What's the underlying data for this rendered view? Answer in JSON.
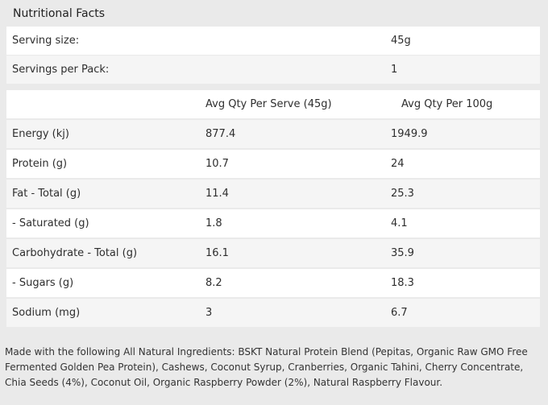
{
  "title": "Nutritional Facts",
  "serving_rows": [
    {
      "label": "Serving size:",
      "value": "45g"
    },
    {
      "label": "Servings per Pack:",
      "value": "1"
    }
  ],
  "table": {
    "col_headers": [
      "Avg Qty Per Serve (45g)",
      "Avg Qty Per 100g"
    ],
    "rows": [
      {
        "label": "Energy (kj)",
        "per_serve": "877.4",
        "per_100g": "1949.9"
      },
      {
        "label": "Protein (g)",
        "per_serve": "10.7",
        "per_100g": "24"
      },
      {
        "label": "Fat - Total (g)",
        "per_serve": "11.4",
        "per_100g": "25.3"
      },
      {
        "label": "- Saturated (g)",
        "per_serve": "1.8",
        "per_100g": "4.1"
      },
      {
        "label": "Carbohydrate - Total (g)",
        "per_serve": "16.1",
        "per_100g": "35.9"
      },
      {
        "label": "- Sugars (g)",
        "per_serve": "8.2",
        "per_100g": "18.3"
      },
      {
        "label": "Sodium (mg)",
        "per_serve": "3",
        "per_100g": "6.7"
      }
    ]
  },
  "ingredients_note": "Made with the following All Natural Ingredients: BSKT Natural Protein Blend (Pepitas, Organic Raw GMO Free Fermented Golden Pea Protein), Cashews, Coconut Syrup, Cranberries, Organic Tahini, Cherry Concentrate, Chia Seeds (4%), Coconut Oil, Organic Raspberry Powder (2%), Natural Raspberry Flavour.",
  "colors": {
    "page_background": "#eaeaea",
    "row_white": "#ffffff",
    "row_alt": "#f5f5f5",
    "text": "#2e2e2e"
  }
}
